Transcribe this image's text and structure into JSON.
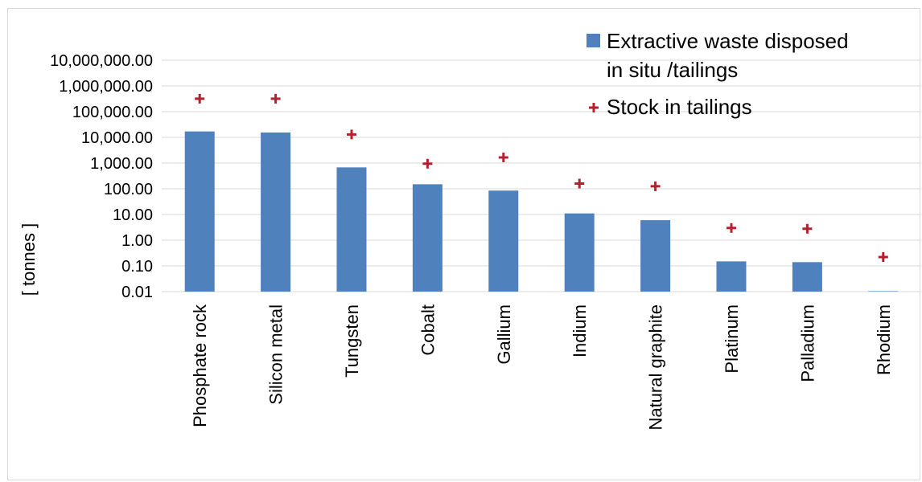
{
  "chart_data": {
    "type": "bar",
    "title": "",
    "xlabel": "",
    "ylabel": "[ tonnes ]",
    "y_scale": "log",
    "ylim": [
      0.01,
      10000000
    ],
    "y_ticks": [
      "0.01",
      "0.10",
      "1.00",
      "10.00",
      "100.00",
      "1,000.00",
      "10,000.00",
      "100,000.00",
      "1,000,000.00",
      "10,000,000.00"
    ],
    "categories": [
      "Phosphate rock",
      "Silicon metal",
      "Tungsten",
      "Cobalt",
      "Gallium",
      "Indium",
      "Natural graphite",
      "Platinum",
      "Palladium",
      "Rhodium"
    ],
    "series": [
      {
        "name": "Extractive waste disposed in situ /tailings",
        "legend_lines": [
          "Extractive waste disposed",
          "in situ /tailings"
        ],
        "kind": "bar",
        "color": "#4f81bd",
        "values": [
          17000,
          15500,
          680,
          150,
          85,
          11,
          6,
          0.15,
          0.14,
          0.01
        ]
      },
      {
        "name": "Stock in tailings",
        "legend_lines": [
          "Stock in tailings"
        ],
        "kind": "marker-plus",
        "color": "#b5202e",
        "values": [
          320000,
          320000,
          13000,
          950,
          1650,
          160,
          125,
          3,
          2.8,
          0.22
        ]
      }
    ],
    "legend_position": "top-right",
    "grid": true
  }
}
